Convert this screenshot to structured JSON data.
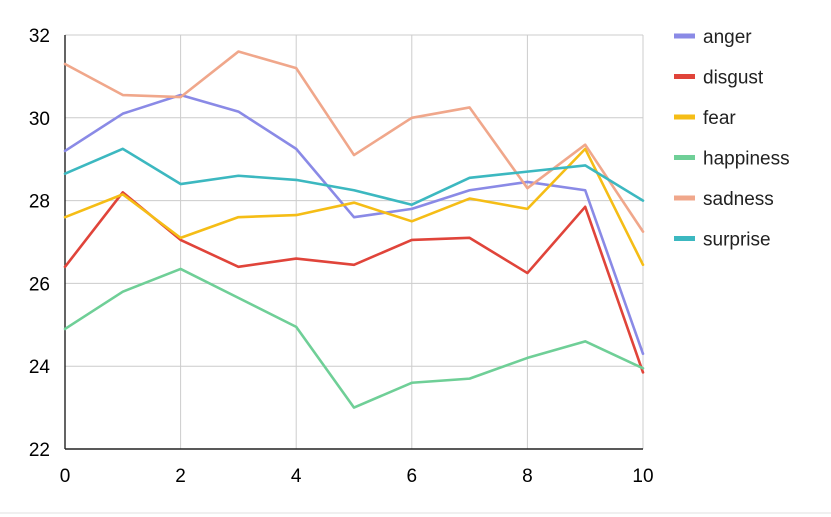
{
  "chart_data": {
    "type": "line",
    "title": "",
    "xlabel": "",
    "ylabel": "",
    "x": [
      0,
      1,
      2,
      3,
      4,
      5,
      6,
      7,
      8,
      9,
      10
    ],
    "xlim": [
      0,
      10
    ],
    "ylim": [
      22,
      32
    ],
    "x_ticks": [
      0,
      2,
      4,
      6,
      8,
      10
    ],
    "y_ticks": [
      22,
      24,
      26,
      28,
      30,
      32
    ],
    "x_tick_labels": [
      "0",
      "2",
      "4",
      "6",
      "8",
      "10"
    ],
    "y_tick_labels": [
      "22",
      "24",
      "26",
      "28",
      "30",
      "32"
    ],
    "grid": true,
    "legend_position": "right",
    "series": [
      {
        "name": "anger",
        "color": "#8a8ae6",
        "values": [
          29.2,
          30.1,
          30.55,
          30.15,
          29.25,
          27.6,
          27.8,
          28.25,
          28.45,
          28.25,
          24.3
        ]
      },
      {
        "name": "disgust",
        "color": "#e0443a",
        "values": [
          26.4,
          28.2,
          27.05,
          26.4,
          26.6,
          26.45,
          27.05,
          27.1,
          26.25,
          27.85,
          23.85
        ]
      },
      {
        "name": "fear",
        "color": "#f5bd16",
        "values": [
          27.6,
          28.15,
          27.1,
          27.6,
          27.65,
          27.95,
          27.5,
          28.05,
          27.8,
          29.25,
          26.45
        ]
      },
      {
        "name": "happiness",
        "color": "#6fcf97",
        "values": [
          24.9,
          25.8,
          26.35,
          25.65,
          24.95,
          23.0,
          23.6,
          23.7,
          24.2,
          24.6,
          23.95
        ]
      },
      {
        "name": "sadness",
        "color": "#f0a78b",
        "values": [
          31.3,
          30.55,
          30.5,
          31.6,
          31.2,
          29.1,
          30.0,
          30.25,
          28.3,
          29.35,
          27.25
        ]
      },
      {
        "name": "surprise",
        "color": "#3cb8c0",
        "values": [
          28.65,
          29.25,
          28.4,
          28.6,
          28.5,
          28.25,
          27.9,
          28.55,
          28.7,
          28.85,
          28.0
        ]
      }
    ]
  }
}
